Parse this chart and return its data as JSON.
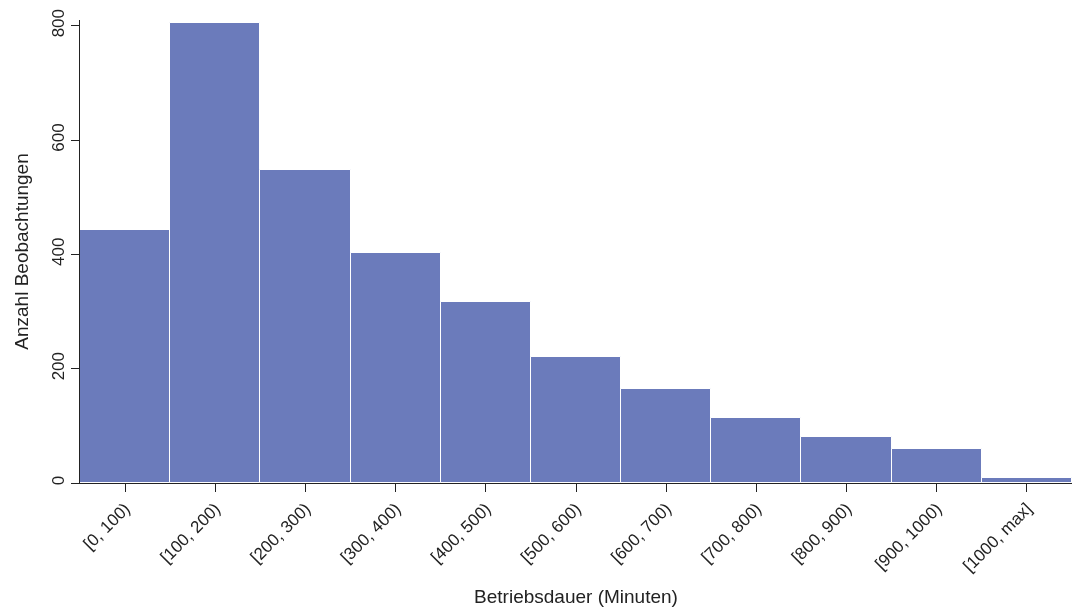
{
  "chart_data": {
    "type": "bar",
    "xlabel": "Betriebsdauer (Minuten)",
    "ylabel": "Anzahl Beobachtungen",
    "categories": [
      "[0, 100)",
      "[100, 200)",
      "[200, 300)",
      "[300, 400)",
      "[400, 500)",
      "[500, 600)",
      "[600, 700)",
      "[700, 800)",
      "[800, 900)",
      "[900, 1000)",
      "[1000, max]"
    ],
    "values": [
      442,
      805,
      548,
      402,
      317,
      220,
      165,
      114,
      81,
      59,
      9
    ],
    "color": "#6b7bbb",
    "ylim": [
      0,
      810
    ],
    "yticks": [
      0,
      200,
      400,
      600,
      800
    ]
  }
}
